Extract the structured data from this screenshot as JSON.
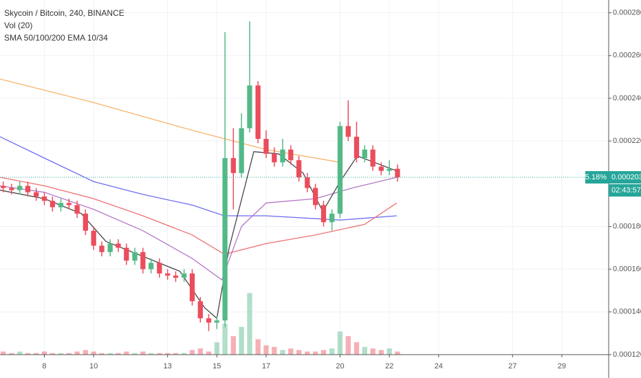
{
  "chart_data": {
    "type": "candlestick",
    "title": "Skycoin / Bitcoin, 240, BINANCE",
    "volume_label": "Vol (20)",
    "ma_label": "SMA 50/100/200 EMA 10/34",
    "x": [
      6.33,
      6.67,
      7,
      7.33,
      7.67,
      8,
      8.33,
      8.67,
      9,
      9.33,
      9.67,
      10,
      10.33,
      10.67,
      11,
      11.33,
      11.67,
      12,
      12.33,
      12.67,
      13,
      13.33,
      13.67,
      14,
      14.33,
      14.67,
      15,
      15.33,
      15.67,
      16,
      16.33,
      16.67,
      17,
      17.33,
      17.67,
      18,
      18.33,
      18.67,
      19,
      19.33,
      19.67,
      20,
      20.33,
      20.67,
      21,
      21.33,
      21.67,
      22,
      22.33
    ],
    "open": [
      0.000199,
      0.000198,
      0.000197,
      0.000199,
      0.000196,
      0.000194,
      0.000192,
      0.000189,
      0.000191,
      0.00019,
      0.000186,
      0.000178,
      0.000171,
      0.000168,
      0.000172,
      0.00017,
      0.000164,
      0.000168,
      0.00016,
      0.000163,
      0.000158,
      0.000157,
      0.000156,
      0.000158,
      0.000145,
      0.000137,
      0.000135,
      0.000136,
      0.000212,
      0.000205,
      0.000226,
      0.000246,
      0.000221,
      0.000214,
      0.00021,
      0.000216,
      0.000211,
      0.000203,
      0.000198,
      0.00019,
      0.000182,
      0.000186,
      0.000227,
      0.000222,
      0.000212,
      0.000216,
      0.000208,
      0.000206,
      0.000207
    ],
    "high": [
      0.000201,
      0.0002,
      0.000201,
      0.000201,
      0.000198,
      0.000196,
      0.000194,
      0.000193,
      0.000193,
      0.000192,
      0.000188,
      0.00018,
      0.000173,
      0.000174,
      0.000174,
      0.000172,
      0.00017,
      0.00017,
      0.000165,
      0.000165,
      0.00016,
      0.000159,
      0.00016,
      0.00016,
      0.000147,
      0.000139,
      0.000138,
      0.000271,
      0.000226,
      0.000233,
      0.000276,
      0.000248,
      0.000225,
      0.000217,
      0.000221,
      0.000218,
      0.000213,
      0.000205,
      0.0002,
      0.000192,
      0.000188,
      0.000229,
      0.000239,
      0.000229,
      0.000218,
      0.000218,
      0.00021,
      0.000211,
      0.000209
    ],
    "low": [
      0.000196,
      0.000195,
      0.000195,
      0.000194,
      0.000192,
      0.00019,
      0.000187,
      0.000187,
      0.000188,
      0.000184,
      0.000176,
      0.000169,
      0.000166,
      0.000166,
      0.000168,
      0.000162,
      0.000162,
      0.000158,
      0.000158,
      0.000156,
      0.000155,
      0.000154,
      0.000154,
      0.000143,
      0.000135,
      0.000131,
      0.000132,
      0.000133,
      0.000188,
      0.000203,
      0.000224,
      0.000219,
      0.000212,
      0.000208,
      0.000208,
      0.000209,
      0.000201,
      0.000196,
      0.000188,
      0.00018,
      0.000178,
      0.000184,
      0.00022,
      0.00021,
      0.00021,
      0.000206,
      0.000204,
      0.000204,
      0.000201
    ],
    "close": [
      0.000198,
      0.000197,
      0.000199,
      0.000196,
      0.000194,
      0.000192,
      0.000189,
      0.000191,
      0.00019,
      0.000186,
      0.000178,
      0.000171,
      0.000168,
      0.000172,
      0.00017,
      0.000164,
      0.000168,
      0.00016,
      0.000163,
      0.000158,
      0.000157,
      0.000156,
      0.000158,
      0.000145,
      0.000137,
      0.000135,
      0.000136,
      0.000212,
      0.000205,
      0.000226,
      0.000246,
      0.000221,
      0.000214,
      0.00021,
      0.000216,
      0.000211,
      0.000203,
      0.000198,
      0.00019,
      0.000182,
      0.000186,
      0.000227,
      0.000222,
      0.000212,
      0.000216,
      0.000208,
      0.000206,
      0.000207,
      0.000203
    ],
    "volume": [
      2,
      1,
      2,
      1,
      1,
      2,
      1,
      1,
      1,
      2,
      3,
      2,
      1,
      1,
      1,
      2,
      1,
      2,
      1,
      1,
      1,
      1,
      1,
      3,
      4,
      2,
      8,
      20,
      12,
      18,
      40,
      10,
      6,
      5,
      3,
      4,
      3,
      2,
      2,
      3,
      4,
      15,
      12,
      8,
      5,
      4,
      3,
      4,
      2
    ],
    "up_color": "#53b987",
    "down_color": "#eb4d5c",
    "lines": [
      {
        "color": "#f9b36b",
        "x": [
          6.2,
          10,
          14,
          17,
          20
        ],
        "values": [
          0.000249,
          0.000238,
          0.000225,
          0.000216,
          0.00021
        ]
      },
      {
        "color": "#6b6cf0",
        "x": [
          6.2,
          8,
          10,
          12,
          14,
          15.3,
          17,
          20,
          22.3
        ],
        "values": [
          0.000222,
          0.000212,
          0.000201,
          0.000195,
          0.00019,
          0.000185,
          0.000185,
          0.000183,
          0.000185
        ]
      },
      {
        "color": "#f07070",
        "x": [
          6.2,
          8,
          10,
          12,
          14,
          15.3,
          17,
          19,
          21,
          22.3
        ],
        "values": [
          0.000203,
          0.000199,
          0.000193,
          0.000185,
          0.000176,
          0.000167,
          0.000172,
          0.000176,
          0.000181,
          0.000191
        ]
      },
      {
        "color": "#b477c6",
        "x": [
          6.2,
          8,
          10,
          12,
          14,
          15.2,
          16,
          17,
          19,
          20.5,
          22.3
        ],
        "values": [
          0.000199,
          0.000196,
          0.000188,
          0.000178,
          0.000165,
          0.000155,
          0.00018,
          0.000191,
          0.000193,
          0.000198,
          0.000203
        ]
      },
      {
        "color": "#444444",
        "x": [
          6.2,
          8,
          9.5,
          10.5,
          12,
          13.5,
          14.5,
          15,
          15.5,
          16.5,
          17.5,
          18.5,
          19.3,
          20,
          20.7,
          22.3
        ],
        "values": [
          0.000197,
          0.000193,
          0.000186,
          0.000173,
          0.000166,
          0.000159,
          0.000142,
          0.000137,
          0.00017,
          0.000215,
          0.000214,
          0.000205,
          0.000187,
          0.000201,
          0.000213,
          0.000206
        ]
      }
    ],
    "last_price": 0.000203,
    "change_label": "5.18%",
    "countdown": "02:43:57",
    "price_color": "#26a69a",
    "xlim": [
      6.2,
      30.9
    ],
    "xticks": [
      8,
      10,
      13,
      15,
      17,
      20,
      22,
      24,
      27,
      29
    ],
    "ylim": [
      0.00012,
      0.000286
    ],
    "vlim": [
      0,
      230
    ],
    "yticks": [
      {
        "value": 0.00012,
        "label": "0.000120"
      },
      {
        "value": 0.00014,
        "label": "0.000140"
      },
      {
        "value": 0.00016,
        "label": "0.000160"
      },
      {
        "value": 0.00018,
        "label": "0.000180"
      },
      {
        "value": 0.00022,
        "label": "0.000220"
      },
      {
        "value": 0.00024,
        "label": "0.000240"
      },
      {
        "value": 0.00026,
        "label": "0.000260"
      },
      {
        "value": 0.00028,
        "label": "0.000280"
      }
    ],
    "grid": true
  }
}
